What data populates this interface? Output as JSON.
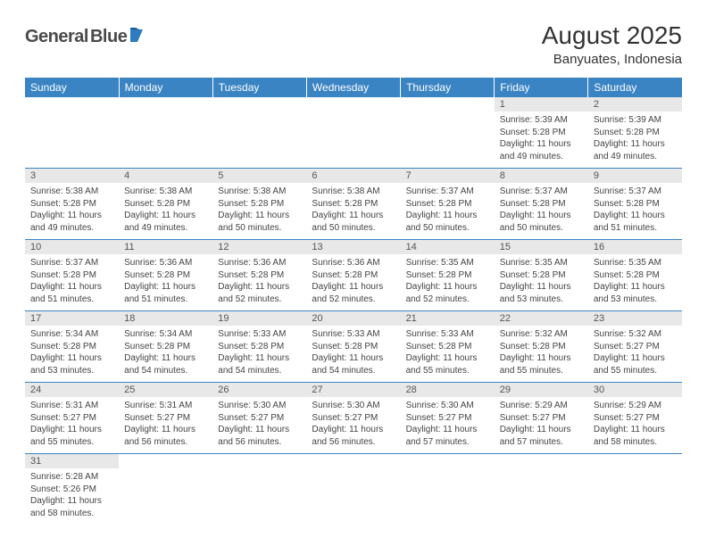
{
  "logo": {
    "text1": "General",
    "text2": "Blue"
  },
  "title": "August 2025",
  "location": "Banyuates, Indonesia",
  "colors": {
    "header_bg": "#3b84c4",
    "header_fg": "#ffffff",
    "daynum_bg": "#e8e8e8",
    "grid_line": "#3b84c4",
    "text": "#444444",
    "logo_gray": "#4a4a4a",
    "logo_blue": "#2f7bbf"
  },
  "weekdays": [
    "Sunday",
    "Monday",
    "Tuesday",
    "Wednesday",
    "Thursday",
    "Friday",
    "Saturday"
  ],
  "weeks": [
    [
      null,
      null,
      null,
      null,
      null,
      {
        "n": "1",
        "sr": "Sunrise: 5:39 AM",
        "ss": "Sunset: 5:28 PM",
        "dl": "Daylight: 11 hours and 49 minutes."
      },
      {
        "n": "2",
        "sr": "Sunrise: 5:39 AM",
        "ss": "Sunset: 5:28 PM",
        "dl": "Daylight: 11 hours and 49 minutes."
      }
    ],
    [
      {
        "n": "3",
        "sr": "Sunrise: 5:38 AM",
        "ss": "Sunset: 5:28 PM",
        "dl": "Daylight: 11 hours and 49 minutes."
      },
      {
        "n": "4",
        "sr": "Sunrise: 5:38 AM",
        "ss": "Sunset: 5:28 PM",
        "dl": "Daylight: 11 hours and 49 minutes."
      },
      {
        "n": "5",
        "sr": "Sunrise: 5:38 AM",
        "ss": "Sunset: 5:28 PM",
        "dl": "Daylight: 11 hours and 50 minutes."
      },
      {
        "n": "6",
        "sr": "Sunrise: 5:38 AM",
        "ss": "Sunset: 5:28 PM",
        "dl": "Daylight: 11 hours and 50 minutes."
      },
      {
        "n": "7",
        "sr": "Sunrise: 5:37 AM",
        "ss": "Sunset: 5:28 PM",
        "dl": "Daylight: 11 hours and 50 minutes."
      },
      {
        "n": "8",
        "sr": "Sunrise: 5:37 AM",
        "ss": "Sunset: 5:28 PM",
        "dl": "Daylight: 11 hours and 50 minutes."
      },
      {
        "n": "9",
        "sr": "Sunrise: 5:37 AM",
        "ss": "Sunset: 5:28 PM",
        "dl": "Daylight: 11 hours and 51 minutes."
      }
    ],
    [
      {
        "n": "10",
        "sr": "Sunrise: 5:37 AM",
        "ss": "Sunset: 5:28 PM",
        "dl": "Daylight: 11 hours and 51 minutes."
      },
      {
        "n": "11",
        "sr": "Sunrise: 5:36 AM",
        "ss": "Sunset: 5:28 PM",
        "dl": "Daylight: 11 hours and 51 minutes."
      },
      {
        "n": "12",
        "sr": "Sunrise: 5:36 AM",
        "ss": "Sunset: 5:28 PM",
        "dl": "Daylight: 11 hours and 52 minutes."
      },
      {
        "n": "13",
        "sr": "Sunrise: 5:36 AM",
        "ss": "Sunset: 5:28 PM",
        "dl": "Daylight: 11 hours and 52 minutes."
      },
      {
        "n": "14",
        "sr": "Sunrise: 5:35 AM",
        "ss": "Sunset: 5:28 PM",
        "dl": "Daylight: 11 hours and 52 minutes."
      },
      {
        "n": "15",
        "sr": "Sunrise: 5:35 AM",
        "ss": "Sunset: 5:28 PM",
        "dl": "Daylight: 11 hours and 53 minutes."
      },
      {
        "n": "16",
        "sr": "Sunrise: 5:35 AM",
        "ss": "Sunset: 5:28 PM",
        "dl": "Daylight: 11 hours and 53 minutes."
      }
    ],
    [
      {
        "n": "17",
        "sr": "Sunrise: 5:34 AM",
        "ss": "Sunset: 5:28 PM",
        "dl": "Daylight: 11 hours and 53 minutes."
      },
      {
        "n": "18",
        "sr": "Sunrise: 5:34 AM",
        "ss": "Sunset: 5:28 PM",
        "dl": "Daylight: 11 hours and 54 minutes."
      },
      {
        "n": "19",
        "sr": "Sunrise: 5:33 AM",
        "ss": "Sunset: 5:28 PM",
        "dl": "Daylight: 11 hours and 54 minutes."
      },
      {
        "n": "20",
        "sr": "Sunrise: 5:33 AM",
        "ss": "Sunset: 5:28 PM",
        "dl": "Daylight: 11 hours and 54 minutes."
      },
      {
        "n": "21",
        "sr": "Sunrise: 5:33 AM",
        "ss": "Sunset: 5:28 PM",
        "dl": "Daylight: 11 hours and 55 minutes."
      },
      {
        "n": "22",
        "sr": "Sunrise: 5:32 AM",
        "ss": "Sunset: 5:28 PM",
        "dl": "Daylight: 11 hours and 55 minutes."
      },
      {
        "n": "23",
        "sr": "Sunrise: 5:32 AM",
        "ss": "Sunset: 5:27 PM",
        "dl": "Daylight: 11 hours and 55 minutes."
      }
    ],
    [
      {
        "n": "24",
        "sr": "Sunrise: 5:31 AM",
        "ss": "Sunset: 5:27 PM",
        "dl": "Daylight: 11 hours and 55 minutes."
      },
      {
        "n": "25",
        "sr": "Sunrise: 5:31 AM",
        "ss": "Sunset: 5:27 PM",
        "dl": "Daylight: 11 hours and 56 minutes."
      },
      {
        "n": "26",
        "sr": "Sunrise: 5:30 AM",
        "ss": "Sunset: 5:27 PM",
        "dl": "Daylight: 11 hours and 56 minutes."
      },
      {
        "n": "27",
        "sr": "Sunrise: 5:30 AM",
        "ss": "Sunset: 5:27 PM",
        "dl": "Daylight: 11 hours and 56 minutes."
      },
      {
        "n": "28",
        "sr": "Sunrise: 5:30 AM",
        "ss": "Sunset: 5:27 PM",
        "dl": "Daylight: 11 hours and 57 minutes."
      },
      {
        "n": "29",
        "sr": "Sunrise: 5:29 AM",
        "ss": "Sunset: 5:27 PM",
        "dl": "Daylight: 11 hours and 57 minutes."
      },
      {
        "n": "30",
        "sr": "Sunrise: 5:29 AM",
        "ss": "Sunset: 5:27 PM",
        "dl": "Daylight: 11 hours and 58 minutes."
      }
    ],
    [
      {
        "n": "31",
        "sr": "Sunrise: 5:28 AM",
        "ss": "Sunset: 5:26 PM",
        "dl": "Daylight: 11 hours and 58 minutes."
      },
      null,
      null,
      null,
      null,
      null,
      null
    ]
  ]
}
